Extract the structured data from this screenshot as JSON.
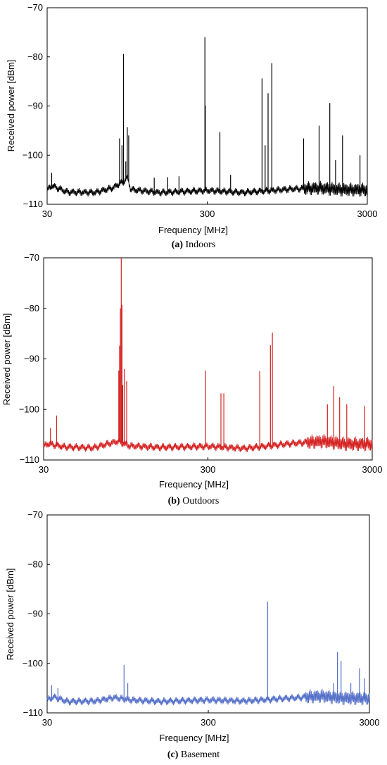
{
  "chart_data": [
    {
      "type": "line",
      "caption_letter": "(a)",
      "caption_text": "Indoors",
      "xlabel": "Frequency [MHz]",
      "ylabel": "Received power [dBm]",
      "xscale": "log",
      "xlim": [
        30,
        3000
      ],
      "ylim": [
        -110,
        -70
      ],
      "xticks": [
        "30",
        "300",
        "3000"
      ],
      "yticks": [
        "−70",
        "−80",
        "−90",
        "−100",
        "−110"
      ],
      "grid": false,
      "color": "#000000",
      "baseline": [
        [
          30,
          -107.2
        ],
        [
          32,
          -106.2
        ],
        [
          40,
          -107.5
        ],
        [
          60,
          -107.6
        ],
        [
          78,
          -106.6
        ],
        [
          85,
          -105.8
        ],
        [
          90,
          -105.5
        ],
        [
          95,
          -104.5
        ],
        [
          100,
          -107
        ],
        [
          150,
          -107.6
        ],
        [
          300,
          -107.2
        ],
        [
          500,
          -107.6
        ],
        [
          1000,
          -106.9
        ],
        [
          1500,
          -106.7
        ],
        [
          2000,
          -107
        ],
        [
          3000,
          -107.1
        ]
      ],
      "peaks": [
        [
          32,
          -103.6
        ],
        [
          85,
          -96.6
        ],
        [
          88,
          -98.0
        ],
        [
          90,
          -79.4
        ],
        [
          93,
          -101.3
        ],
        [
          95,
          -94.3
        ],
        [
          97,
          -96.0
        ],
        [
          140,
          -104.6
        ],
        [
          170,
          -104.5
        ],
        [
          200,
          -104.3
        ],
        [
          290,
          -76.0
        ],
        [
          292,
          -89.9
        ],
        [
          360,
          -95.3
        ],
        [
          420,
          -104.0
        ],
        [
          660,
          -84.4
        ],
        [
          690,
          -98.0
        ],
        [
          720,
          -87.4
        ],
        [
          760,
          -81.3
        ],
        [
          1200,
          -96.6
        ],
        [
          1500,
          -94.0
        ],
        [
          1750,
          -89.4
        ],
        [
          1900,
          -101.0
        ],
        [
          2100,
          -96.0
        ],
        [
          2700,
          -100.0
        ]
      ]
    },
    {
      "type": "line",
      "caption_letter": "(b)",
      "caption_text": "Outdoors",
      "xlabel": "Frequency [MHz]",
      "ylabel": "Received power [dBm]",
      "xscale": "log",
      "xlim": [
        30,
        3000
      ],
      "ylim": [
        -110,
        -70
      ],
      "xticks": [
        "30",
        "300",
        "3000"
      ],
      "yticks": [
        "−70",
        "−80",
        "−90",
        "−100",
        "−110"
      ],
      "grid": false,
      "color": "#d42020",
      "baseline": [
        [
          30,
          -107.3
        ],
        [
          32,
          -106.8
        ],
        [
          40,
          -107.4
        ],
        [
          60,
          -107.6
        ],
        [
          78,
          -106.6
        ],
        [
          85,
          -106.3
        ],
        [
          100,
          -107.2
        ],
        [
          150,
          -107.5
        ],
        [
          300,
          -107.3
        ],
        [
          500,
          -107.7
        ],
        [
          1000,
          -106.7
        ],
        [
          1500,
          -106.3
        ],
        [
          2000,
          -106.8
        ],
        [
          3000,
          -106.9
        ]
      ],
      "peaks": [
        [
          33,
          -103.7
        ],
        [
          36,
          -101.2
        ],
        [
          86,
          -92.3
        ],
        [
          87,
          -87.4
        ],
        [
          88,
          -80.0
        ],
        [
          89,
          -70.0
        ],
        [
          90,
          -79.3
        ],
        [
          91,
          -95.2
        ],
        [
          93,
          -92.0
        ],
        [
          96,
          -94.4
        ],
        [
          290,
          -92.3
        ],
        [
          360,
          -96.8
        ],
        [
          375,
          -96.8
        ],
        [
          620,
          -92.4
        ],
        [
          720,
          -87.3
        ],
        [
          740,
          -84.8
        ],
        [
          1600,
          -99.0
        ],
        [
          1750,
          -95.4
        ],
        [
          1900,
          -97.6
        ],
        [
          2100,
          -99.0
        ],
        [
          2700,
          -99.3
        ]
      ]
    },
    {
      "type": "line",
      "caption_letter": "(c)",
      "caption_text": "Basement",
      "xlabel": "Frequency [MHz]",
      "ylabel": "Received power [dBm]",
      "xscale": "log",
      "xlim": [
        30,
        3000
      ],
      "ylim": [
        -110,
        -70
      ],
      "xticks": [
        "30",
        "300",
        "3000"
      ],
      "yticks": [
        "−70",
        "−80",
        "−90",
        "−100",
        "−110"
      ],
      "grid": false,
      "color": "#5570c8",
      "baseline": [
        [
          30,
          -107.4
        ],
        [
          33,
          -106.8
        ],
        [
          40,
          -107.7
        ],
        [
          60,
          -107.6
        ],
        [
          78,
          -106.9
        ],
        [
          100,
          -107.4
        ],
        [
          150,
          -107.7
        ],
        [
          300,
          -107.4
        ],
        [
          500,
          -107.6
        ],
        [
          1000,
          -107.0
        ],
        [
          1500,
          -106.6
        ],
        [
          2000,
          -107.0
        ],
        [
          3000,
          -107.1
        ]
      ],
      "peaks": [
        [
          32,
          -104.4
        ],
        [
          35,
          -105.0
        ],
        [
          90,
          -100.3
        ],
        [
          95,
          -104.0
        ],
        [
          700,
          -87.5
        ],
        [
          1800,
          -104.0
        ],
        [
          1900,
          -97.7
        ],
        [
          2000,
          -99.5
        ],
        [
          2300,
          -104.0
        ],
        [
          2600,
          -101.0
        ],
        [
          2800,
          -103.0
        ]
      ]
    }
  ]
}
